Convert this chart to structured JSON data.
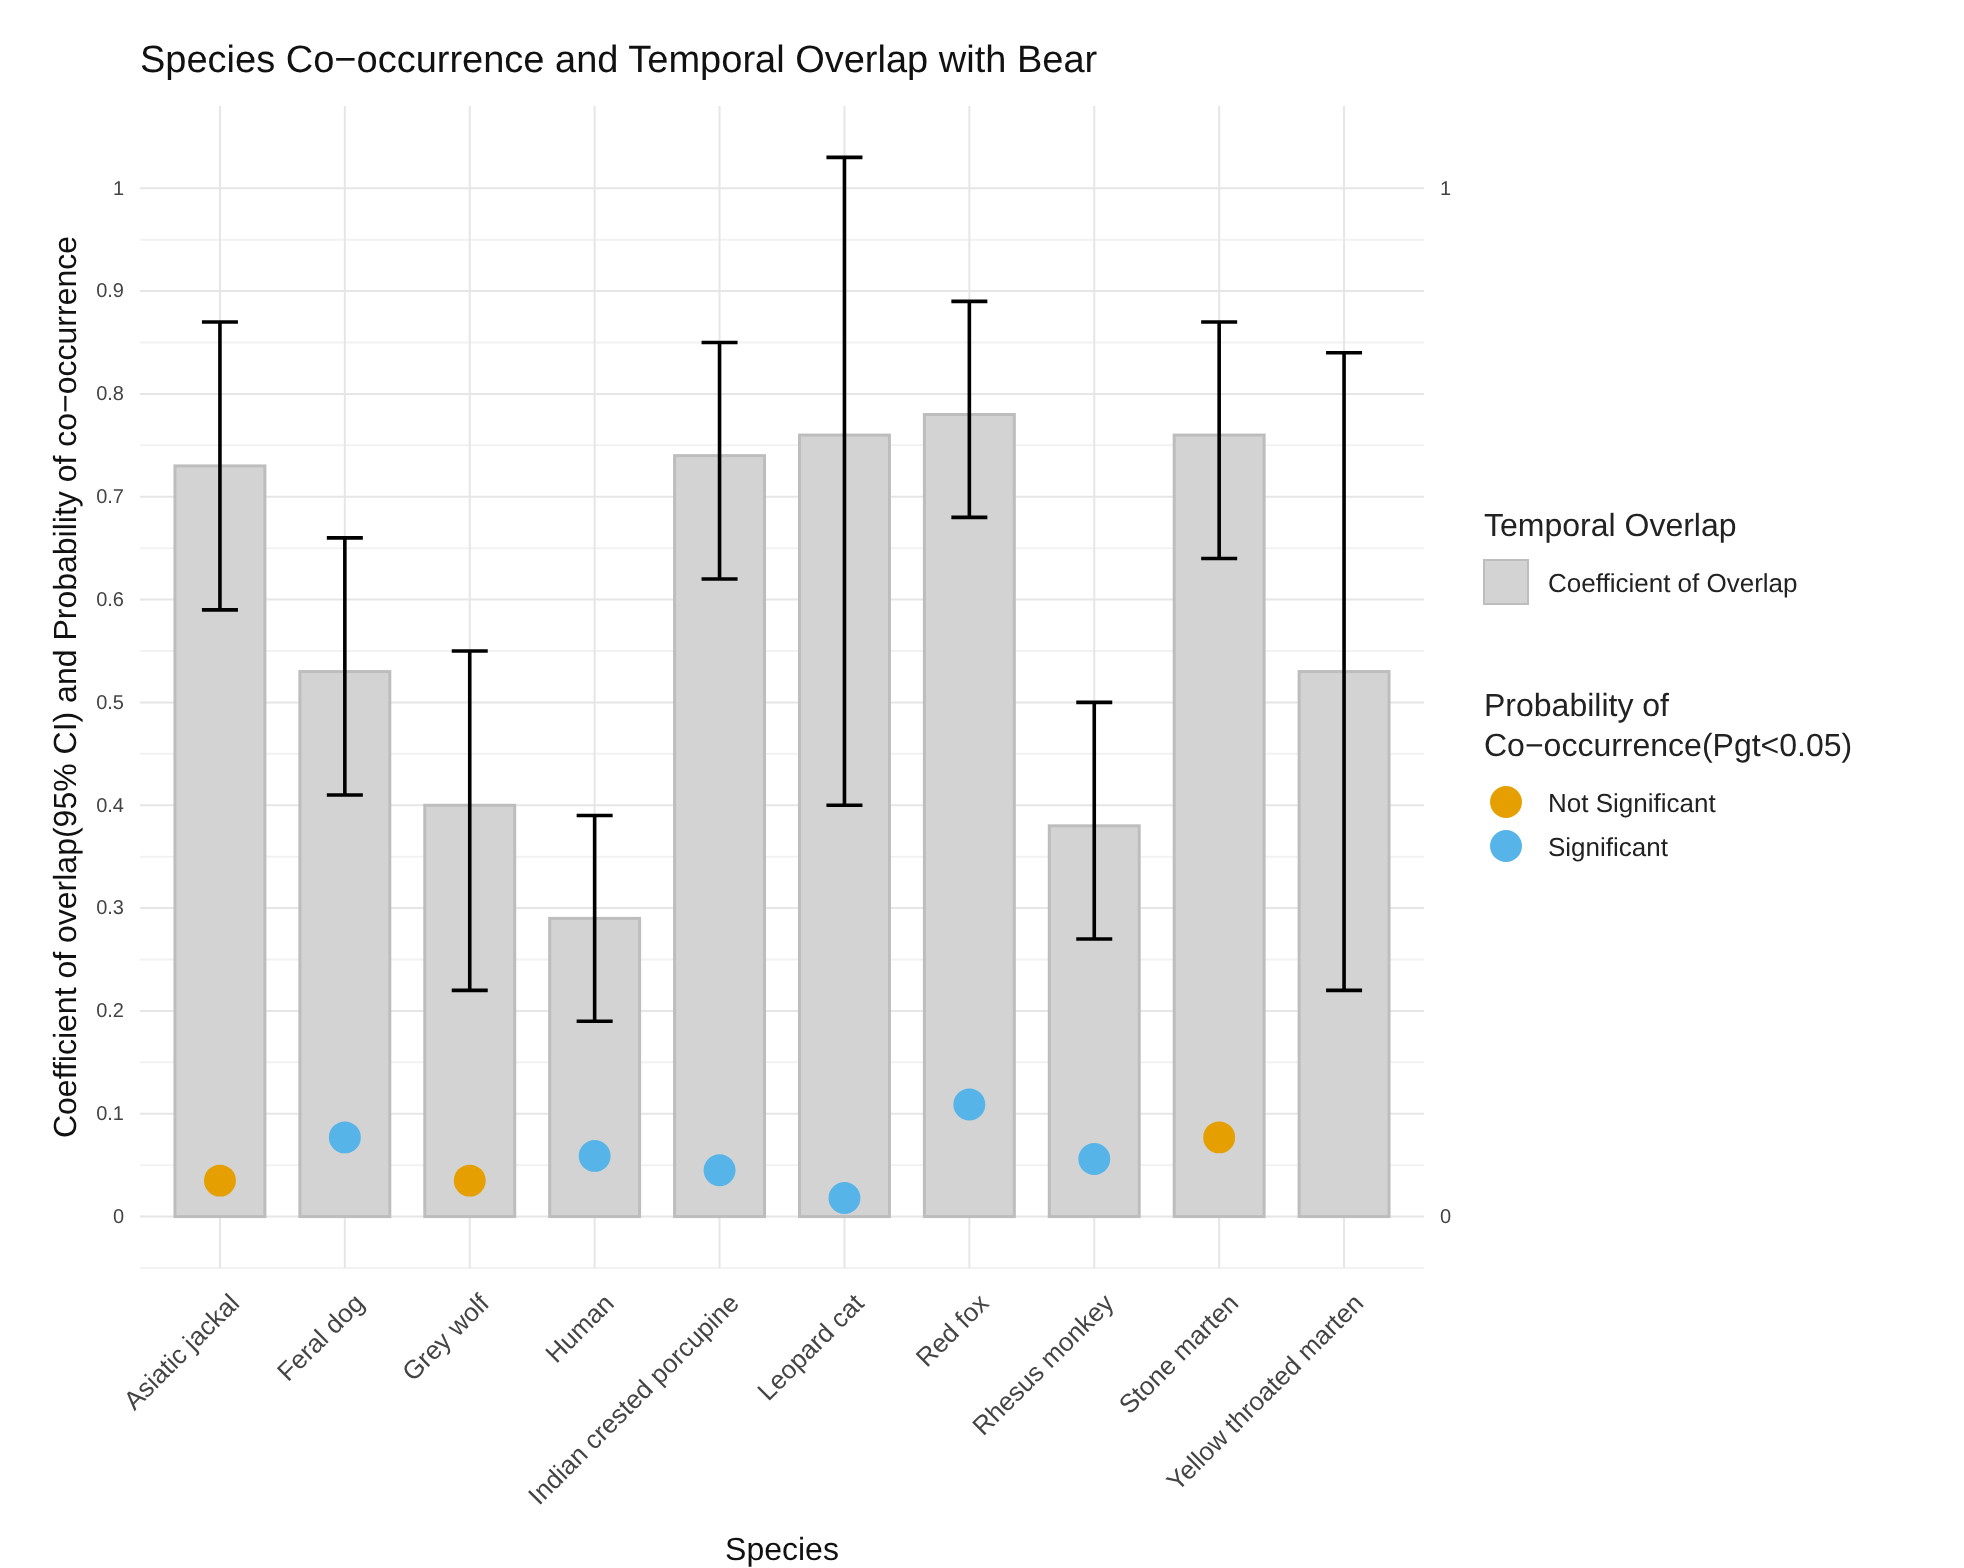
{
  "chart_data": {
    "type": "bar",
    "title": "Species Co−occurrence and Temporal Overlap with Bear",
    "xlabel": "Species",
    "ylabel": "Coefficient of overlap(95% CI) and Probability of co−occurrence",
    "legend_title": "Temporal Overlap",
    "annotations": [
      "Probability of\nCo−occurrence(Pgt<0.05)"
    ],
    "categories": [
      "Asiatic jackal",
      "Feral dog",
      "Grey wolf",
      "Human",
      "Indian crested porcupine",
      "Leopard cat",
      "Red fox",
      "Rhesus monkey",
      "Stone marten",
      "Yellow throated marten"
    ],
    "series": [
      {
        "name": "Coefficient of Overlap",
        "color": "#d3d3d3",
        "values": [
          0.73,
          0.53,
          0.4,
          0.29,
          0.74,
          0.76,
          0.78,
          0.38,
          0.76,
          0.53
        ],
        "errors": [
          [
            0.59,
            0.87
          ],
          [
            0.41,
            0.66
          ],
          [
            0.22,
            0.55
          ],
          [
            0.19,
            0.39
          ],
          [
            0.62,
            0.85
          ],
          [
            0.4,
            1.03
          ],
          [
            0.68,
            0.89
          ],
          [
            0.27,
            0.5
          ],
          [
            0.64,
            0.87
          ],
          [
            0.22,
            0.84
          ]
        ]
      },
      {
        "type": "scatter",
        "name": "Not Significant",
        "color": "#e69f00",
        "values": [
          0.035,
          null,
          0.035,
          null,
          null,
          null,
          null,
          null,
          0.077,
          null
        ]
      },
      {
        "type": "scatter",
        "name": "Significant",
        "color": "#56b4e9",
        "values": [
          null,
          0.077,
          null,
          0.059,
          0.045,
          0.018,
          0.109,
          0.056,
          null,
          null
        ]
      }
    ],
    "ylim": [
      -0.05,
      1.08
    ],
    "yticks": [
      0,
      0.1,
      0.2,
      0.3,
      0.4,
      0.5,
      0.6,
      0.7,
      0.8,
      0.9,
      1
    ],
    "y2lim": [
      -0.05,
      1.08
    ],
    "y2ticks": [
      0,
      1
    ],
    "grid": true,
    "legend": "right",
    "marker": "circle"
  }
}
